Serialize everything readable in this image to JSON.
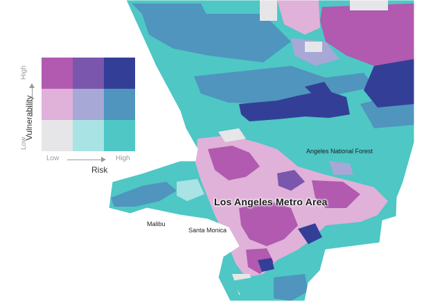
{
  "legend": {
    "y_axis_label": "Vulnerability",
    "x_axis_label": "Risk",
    "y_high": "High",
    "y_low": "Low",
    "x_low": "Low",
    "x_high": "High",
    "rows": [
      [
        "#b15aaf",
        "#7a56ad",
        "#333f96"
      ],
      [
        "#e0b1d9",
        "#a7a8d6",
        "#4f95bd"
      ],
      [
        "#e6e6e8",
        "#a9e3e3",
        "#4ec7c5"
      ]
    ]
  },
  "labels": {
    "forest": "Angeles National Forest",
    "metro": "Los Angeles Metro Area",
    "malibu": "Malibu",
    "santa_monica": "Santa Monica"
  },
  "colors": {
    "teal": "#4ec7c5",
    "mid_blue": "#4f95bd",
    "dark_blue": "#333f96",
    "magenta": "#b15aaf",
    "pink": "#e0b1d9",
    "lavender": "#a7a8d6",
    "light_teal": "#a9e3e3",
    "grey": "#e6e6e8",
    "purple": "#7a56ad",
    "background": "#ffffff"
  }
}
